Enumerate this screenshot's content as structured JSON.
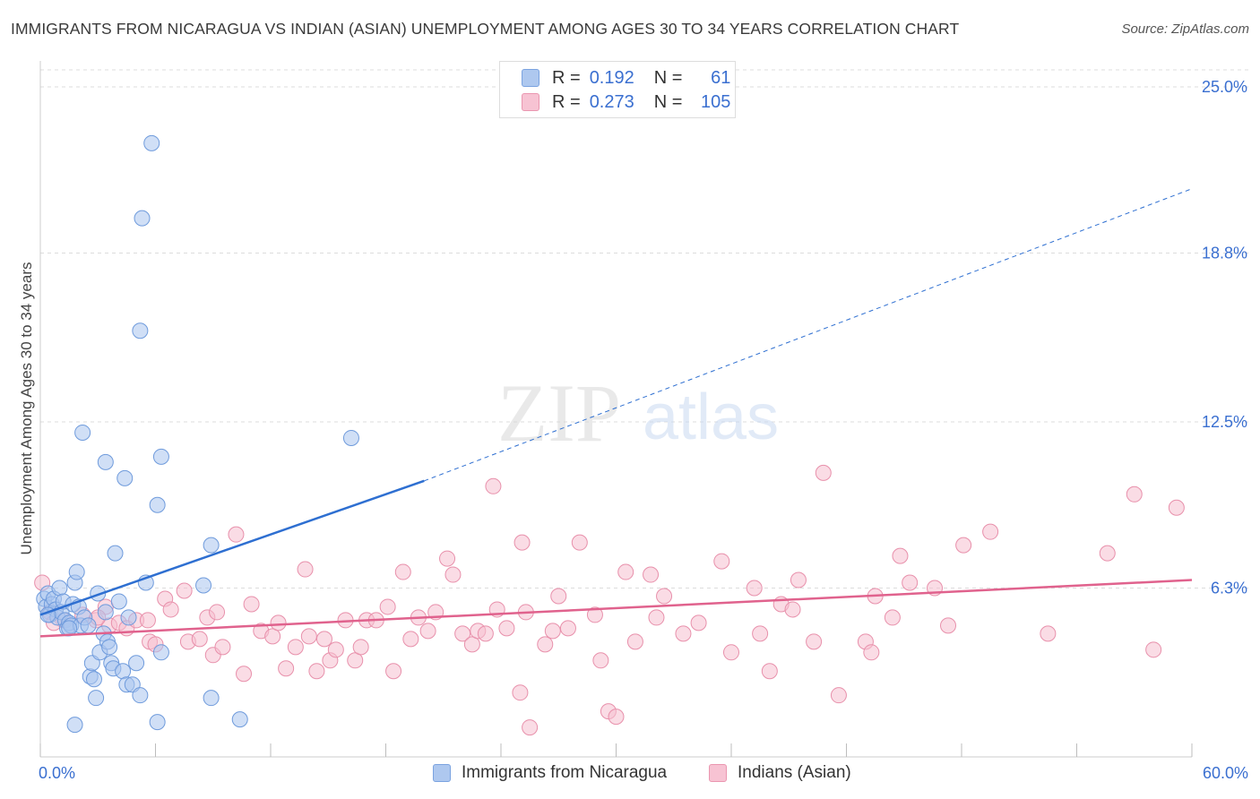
{
  "header": {
    "title": "IMMIGRANTS FROM NICARAGUA VS INDIAN (ASIAN) UNEMPLOYMENT AMONG AGES 30 TO 34 YEARS CORRELATION CHART",
    "source": "Source: ZipAtlas.com"
  },
  "watermark": {
    "zip": "ZIP",
    "atlas": "atlas"
  },
  "legend": {
    "rows": [
      {
        "r_label": "R =",
        "r_value": "0.192",
        "n_label": "N =",
        "n_value": "61",
        "color": "#aec8ef",
        "border": "#7ba3e0"
      },
      {
        "r_label": "R =",
        "r_value": "0.273",
        "n_label": "N =",
        "n_value": "105",
        "color": "#f7c3d3",
        "border": "#ea96b0"
      }
    ]
  },
  "bottom_legend": {
    "items": [
      {
        "label": "Immigrants from Nicaragua",
        "color": "#aec8ef",
        "border": "#7ba3e0"
      },
      {
        "label": "Indians (Asian)",
        "color": "#f7c3d3",
        "border": "#ea96b0"
      }
    ]
  },
  "colors": {
    "blue_point": "#a9c5ee",
    "blue_stroke": "#6f9bdc",
    "blue_line": "#2e6fd1",
    "pink_point": "#f6bfd0",
    "pink_stroke": "#e890ab",
    "pink_line": "#e0628d",
    "axis_text": "#3a6fd0"
  },
  "chart_data": {
    "type": "scatter",
    "title": "IMMIGRANTS FROM NICARAGUA VS INDIAN (ASIAN) UNEMPLOYMENT AMONG AGES 30 TO 34 YEARS CORRELATION CHART",
    "xlabel": "",
    "ylabel": "Unemployment Among Ages 30 to 34 years",
    "xlim": [
      0,
      60
    ],
    "ylim": [
      0,
      25.0
    ],
    "x_tick_labels": [
      "0.0%",
      "60.0%"
    ],
    "y_ticks": [
      6.3,
      12.5,
      18.8,
      25.0
    ],
    "y_tick_labels": [
      "6.3%",
      "12.5%",
      "18.8%",
      "25.0%"
    ],
    "grid": true,
    "legend_position": "top-center",
    "series": [
      {
        "name": "Immigrants from Nicaragua",
        "R": 0.192,
        "N": 61,
        "trend": {
          "x0": 0.0,
          "y0": 5.3,
          "x1": 20.0,
          "y1": 10.3,
          "dashed_to_x": 60.0,
          "dashed_to_y": 21.2
        },
        "points": [
          [
            0.2,
            5.9
          ],
          [
            0.3,
            5.6
          ],
          [
            0.4,
            6.1
          ],
          [
            0.5,
            5.3
          ],
          [
            0.6,
            5.7
          ],
          [
            0.7,
            5.9
          ],
          [
            0.8,
            5.5
          ],
          [
            0.9,
            5.2
          ],
          [
            1.0,
            6.3
          ],
          [
            1.1,
            5.4
          ],
          [
            1.2,
            5.8
          ],
          [
            1.3,
            5.1
          ],
          [
            1.4,
            4.8
          ],
          [
            1.5,
            5.0
          ],
          [
            1.6,
            4.9
          ],
          [
            1.7,
            5.7
          ],
          [
            1.8,
            6.5
          ],
          [
            1.9,
            6.9
          ],
          [
            2.0,
            5.6
          ],
          [
            2.1,
            4.9
          ],
          [
            2.3,
            5.2
          ],
          [
            2.5,
            4.9
          ],
          [
            2.6,
            3.0
          ],
          [
            2.7,
            3.5
          ],
          [
            2.8,
            2.9
          ],
          [
            2.9,
            2.2
          ],
          [
            3.0,
            6.1
          ],
          [
            3.1,
            3.9
          ],
          [
            3.3,
            4.6
          ],
          [
            3.4,
            5.4
          ],
          [
            3.5,
            4.3
          ],
          [
            3.6,
            4.1
          ],
          [
            3.7,
            3.5
          ],
          [
            3.8,
            3.3
          ],
          [
            3.9,
            7.6
          ],
          [
            4.1,
            5.8
          ],
          [
            4.3,
            3.2
          ],
          [
            4.5,
            2.7
          ],
          [
            4.6,
            5.2
          ],
          [
            4.8,
            2.7
          ],
          [
            5.0,
            3.5
          ],
          [
            5.2,
            2.3
          ],
          [
            5.5,
            6.5
          ],
          [
            2.2,
            12.1
          ],
          [
            3.4,
            11.0
          ],
          [
            4.4,
            10.4
          ],
          [
            6.1,
            9.4
          ],
          [
            6.3,
            11.2
          ],
          [
            5.2,
            15.9
          ],
          [
            5.3,
            20.1
          ],
          [
            5.8,
            22.9
          ],
          [
            6.3,
            3.9
          ],
          [
            6.1,
            1.3
          ],
          [
            8.5,
            6.4
          ],
          [
            8.9,
            7.9
          ],
          [
            8.9,
            2.2
          ],
          [
            10.4,
            1.4
          ],
          [
            16.2,
            11.9
          ],
          [
            1.8,
            1.2
          ],
          [
            0.4,
            5.3
          ],
          [
            1.5,
            4.8
          ]
        ]
      },
      {
        "name": "Indians (Asian)",
        "R": 0.273,
        "N": 105,
        "trend": {
          "x0": 0.0,
          "y0": 4.5,
          "x1": 60.0,
          "y1": 6.6
        },
        "points": [
          [
            0.1,
            6.5
          ],
          [
            0.5,
            5.4
          ],
          [
            1.2,
            5.1
          ],
          [
            2.2,
            5.3
          ],
          [
            2.9,
            5.1
          ],
          [
            3.4,
            5.6
          ],
          [
            3.6,
            4.9
          ],
          [
            4.1,
            5.0
          ],
          [
            4.5,
            4.8
          ],
          [
            5.0,
            5.1
          ],
          [
            5.6,
            5.1
          ],
          [
            5.7,
            4.3
          ],
          [
            6.0,
            4.2
          ],
          [
            6.5,
            5.9
          ],
          [
            6.8,
            5.5
          ],
          [
            7.5,
            6.2
          ],
          [
            7.7,
            4.3
          ],
          [
            8.3,
            4.4
          ],
          [
            8.7,
            5.2
          ],
          [
            9.0,
            3.8
          ],
          [
            9.2,
            5.4
          ],
          [
            9.5,
            4.1
          ],
          [
            10.2,
            8.3
          ],
          [
            10.6,
            3.1
          ],
          [
            11.0,
            5.7
          ],
          [
            11.5,
            4.7
          ],
          [
            12.1,
            4.5
          ],
          [
            12.4,
            5.0
          ],
          [
            12.8,
            3.3
          ],
          [
            13.3,
            4.1
          ],
          [
            13.8,
            7.0
          ],
          [
            14.0,
            4.5
          ],
          [
            14.4,
            3.2
          ],
          [
            14.8,
            4.4
          ],
          [
            15.1,
            3.6
          ],
          [
            15.4,
            4.0
          ],
          [
            15.9,
            5.1
          ],
          [
            16.4,
            3.6
          ],
          [
            16.7,
            4.1
          ],
          [
            17.0,
            5.1
          ],
          [
            17.5,
            5.1
          ],
          [
            18.1,
            5.6
          ],
          [
            18.4,
            3.2
          ],
          [
            18.9,
            6.9
          ],
          [
            19.3,
            4.4
          ],
          [
            19.7,
            5.2
          ],
          [
            20.2,
            4.7
          ],
          [
            20.6,
            5.4
          ],
          [
            21.2,
            7.4
          ],
          [
            21.5,
            6.8
          ],
          [
            22.0,
            4.6
          ],
          [
            22.5,
            4.2
          ],
          [
            22.8,
            4.7
          ],
          [
            23.2,
            4.6
          ],
          [
            23.6,
            10.1
          ],
          [
            23.8,
            5.5
          ],
          [
            24.3,
            4.8
          ],
          [
            25.0,
            2.4
          ],
          [
            25.1,
            8.0
          ],
          [
            25.3,
            5.4
          ],
          [
            25.5,
            1.1
          ],
          [
            26.3,
            4.2
          ],
          [
            26.7,
            4.7
          ],
          [
            27.0,
            6.0
          ],
          [
            27.5,
            4.8
          ],
          [
            28.1,
            8.0
          ],
          [
            28.9,
            5.3
          ],
          [
            29.2,
            3.6
          ],
          [
            29.6,
            1.7
          ],
          [
            30.0,
            1.5
          ],
          [
            30.5,
            6.9
          ],
          [
            31.0,
            4.3
          ],
          [
            31.8,
            6.8
          ],
          [
            32.1,
            5.2
          ],
          [
            32.5,
            6.0
          ],
          [
            33.5,
            4.6
          ],
          [
            34.3,
            5.0
          ],
          [
            35.5,
            7.3
          ],
          [
            36.0,
            3.9
          ],
          [
            37.2,
            6.3
          ],
          [
            37.5,
            4.6
          ],
          [
            38.0,
            3.2
          ],
          [
            38.6,
            5.7
          ],
          [
            39.2,
            5.5
          ],
          [
            39.5,
            6.6
          ],
          [
            40.3,
            4.3
          ],
          [
            40.8,
            10.6
          ],
          [
            41.6,
            2.3
          ],
          [
            43.0,
            4.3
          ],
          [
            43.3,
            3.9
          ],
          [
            43.5,
            6.0
          ],
          [
            44.4,
            5.2
          ],
          [
            44.8,
            7.5
          ],
          [
            45.3,
            6.5
          ],
          [
            46.6,
            6.3
          ],
          [
            47.3,
            4.9
          ],
          [
            48.1,
            7.9
          ],
          [
            49.5,
            8.4
          ],
          [
            52.5,
            4.6
          ],
          [
            55.6,
            7.6
          ],
          [
            57.0,
            9.8
          ],
          [
            58.0,
            4.0
          ],
          [
            59.2,
            9.3
          ],
          [
            0.7,
            5.0
          ],
          [
            3.0,
            5.2
          ]
        ]
      }
    ]
  }
}
